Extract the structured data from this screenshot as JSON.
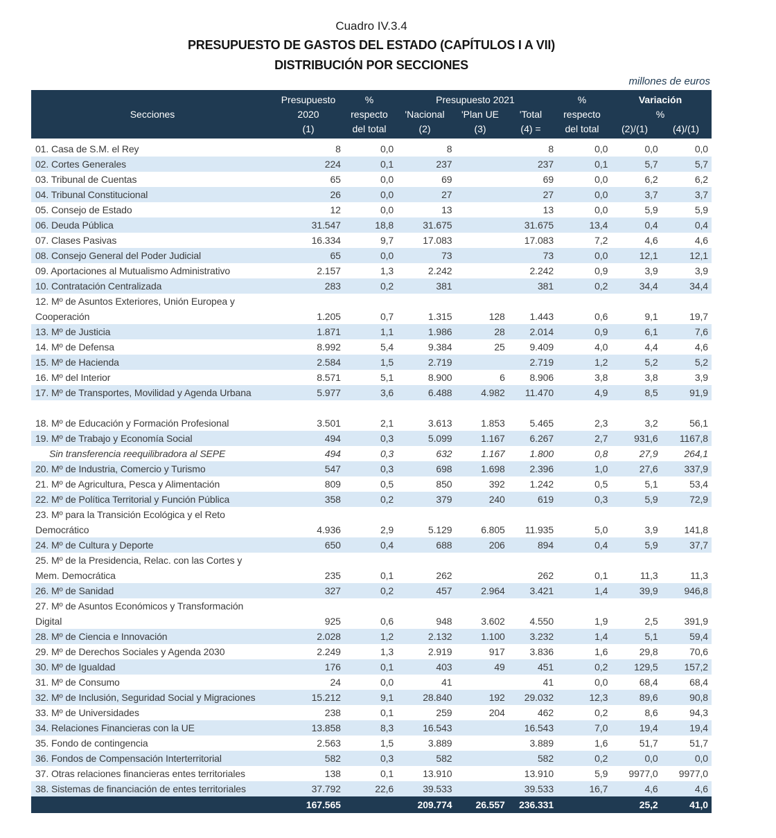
{
  "title": {
    "cuadro": "Cuadro IV.3.4",
    "line1": "PRESUPUESTO DE GASTOS DEL ESTADO (CAPÍTULOS I A VII)",
    "line2": "DISTRIBUCIÓN POR SECCIONES",
    "units": "millones de euros"
  },
  "colors": {
    "header_bg": "#1f3a52",
    "stripe": "#d9e8f5",
    "body_text": "#3b3b3b",
    "header_text": "#ffffff"
  },
  "header": {
    "secciones": "Secciones",
    "p2020": [
      "Presupuesto",
      "2020",
      "(1)"
    ],
    "pct1": [
      "%",
      "respecto",
      "del total"
    ],
    "p2021_group": "Presupuesto 2021",
    "p2021_cols": [
      [
        "'Nacional",
        "(2)"
      ],
      [
        "'Plan UE",
        "(3)"
      ],
      [
        "'Total",
        "(4) ="
      ]
    ],
    "pct2": [
      "%",
      "respecto",
      "del total"
    ],
    "variacion": [
      "Variación",
      "%"
    ],
    "variacion_cols": [
      "(2)/(1)",
      "(4)/(1)"
    ]
  },
  "table": {
    "rows": [
      {
        "label": "01. Casa de S.M. el Rey",
        "values": [
          "8",
          "0,0",
          "8",
          "",
          "8",
          "0,0",
          "0,0",
          "0,0"
        ],
        "variant": "white"
      },
      {
        "label": "02. Cortes Generales",
        "values": [
          "224",
          "0,1",
          "237",
          "",
          "237",
          "0,1",
          "5,7",
          "5,7"
        ],
        "variant": "blue"
      },
      {
        "label": "03. Tribunal de Cuentas",
        "values": [
          "65",
          "0,0",
          "69",
          "",
          "69",
          "0,0",
          "6,2",
          "6,2"
        ],
        "variant": "white"
      },
      {
        "label": "04. Tribunal Constitucional",
        "values": [
          "26",
          "0,0",
          "27",
          "",
          "27",
          "0,0",
          "3,7",
          "3,7"
        ],
        "variant": "blue"
      },
      {
        "label": "05. Consejo de Estado",
        "values": [
          "12",
          "0,0",
          "13",
          "",
          "13",
          "0,0",
          "5,9",
          "5,9"
        ],
        "variant": "white"
      },
      {
        "label": "06. Deuda Pública",
        "values": [
          "31.547",
          "18,8",
          "31.675",
          "",
          "31.675",
          "13,4",
          "0,4",
          "0,4"
        ],
        "variant": "blue"
      },
      {
        "label": "07. Clases Pasivas",
        "values": [
          "16.334",
          "9,7",
          "17.083",
          "",
          "17.083",
          "7,2",
          "4,6",
          "4,6"
        ],
        "variant": "white"
      },
      {
        "label": "08. Consejo General del Poder Judicial",
        "values": [
          "65",
          "0,0",
          "73",
          "",
          "73",
          "0,0",
          "12,1",
          "12,1"
        ],
        "variant": "blue"
      },
      {
        "label": "09. Aportaciones al Mutualismo Administrativo",
        "values": [
          "2.157",
          "1,3",
          "2.242",
          "",
          "2.242",
          "0,9",
          "3,9",
          "3,9"
        ],
        "variant": "white"
      },
      {
        "label": "10. Contratación Centralizada",
        "values": [
          "283",
          "0,2",
          "381",
          "",
          "381",
          "0,2",
          "34,4",
          "34,4"
        ],
        "variant": "blue"
      },
      {
        "label": "12. Mº de Asuntos Exteriores, Unión Europea y",
        "values": [
          "",
          "",
          "",
          "",
          "",
          "",
          "",
          ""
        ],
        "variant": "white"
      },
      {
        "label": "Cooperación",
        "values": [
          "1.205",
          "0,7",
          "1.315",
          "128",
          "1.443",
          "0,6",
          "9,1",
          "19,7"
        ],
        "variant": "white"
      },
      {
        "label": "13. Mº de Justicia",
        "values": [
          "1.871",
          "1,1",
          "1.986",
          "28",
          "2.014",
          "0,9",
          "6,1",
          "7,6"
        ],
        "variant": "blue"
      },
      {
        "label": "14. Mº de Defensa",
        "values": [
          "8.992",
          "5,4",
          "9.384",
          "25",
          "9.409",
          "4,0",
          "4,4",
          "4,6"
        ],
        "variant": "white"
      },
      {
        "label": "15. Mº de Hacienda",
        "values": [
          "2.584",
          "1,5",
          "2.719",
          "",
          "2.719",
          "1,2",
          "5,2",
          "5,2"
        ],
        "variant": "blue"
      },
      {
        "label": "16. Mº del Interior",
        "values": [
          "8.571",
          "5,1",
          "8.900",
          "6",
          "8.906",
          "3,8",
          "3,8",
          "3,9"
        ],
        "variant": "white"
      },
      {
        "label": "17. Mº de Transportes, Movilidad y Agenda Urbana",
        "values": [
          "5.977",
          "3,6",
          "6.488",
          "4.982",
          "11.470",
          "4,9",
          "8,5",
          "91,9"
        ],
        "variant": "blue"
      },
      {
        "label": "",
        "values": [
          "",
          "",
          "",
          "",
          "",
          "",
          "",
          ""
        ],
        "variant": "spacer"
      },
      {
        "label": "18. Mº de Educación y Formación Profesional",
        "values": [
          "3.501",
          "2,1",
          "3.613",
          "1.853",
          "5.465",
          "2,3",
          "3,2",
          "56,1"
        ],
        "variant": "white"
      },
      {
        "label": "19. Mº de Trabajo y Economía Social",
        "values": [
          "494",
          "0,3",
          "5.099",
          "1.167",
          "6.267",
          "2,7",
          "931,6",
          "1167,8"
        ],
        "variant": "blue"
      },
      {
        "label": "Sin transferencia reequilibradora al SEPE",
        "values": [
          "494",
          "0,3",
          "632",
          "1.167",
          "1.800",
          "0,8",
          "27,9",
          "264,1"
        ],
        "variant": "italic"
      },
      {
        "label": "20. Mº de Industria, Comercio y Turismo",
        "values": [
          "547",
          "0,3",
          "698",
          "1.698",
          "2.396",
          "1,0",
          "27,6",
          "337,9"
        ],
        "variant": "blue"
      },
      {
        "label": "21. Mº de Agricultura, Pesca y Alimentación",
        "values": [
          "809",
          "0,5",
          "850",
          "392",
          "1.242",
          "0,5",
          "5,1",
          "53,4"
        ],
        "variant": "white"
      },
      {
        "label": "22. Mº de Política Territorial y Función Pública",
        "values": [
          "358",
          "0,2",
          "379",
          "240",
          "619",
          "0,3",
          "5,9",
          "72,9"
        ],
        "variant": "blue"
      },
      {
        "label": "23. Mº para la Transición Ecológica y el Reto",
        "values": [
          "",
          "",
          "",
          "",
          "",
          "",
          "",
          ""
        ],
        "variant": "white"
      },
      {
        "label": "Democrático",
        "values": [
          "4.936",
          "2,9",
          "5.129",
          "6.805",
          "11.935",
          "5,0",
          "3,9",
          "141,8"
        ],
        "variant": "white"
      },
      {
        "label": "24. Mº de Cultura y Deporte",
        "values": [
          "650",
          "0,4",
          "688",
          "206",
          "894",
          "0,4",
          "5,9",
          "37,7"
        ],
        "variant": "blue"
      },
      {
        "label": "25. Mº de la Presidencia, Relac. con las Cortes y",
        "values": [
          "",
          "",
          "",
          "",
          "",
          "",
          "",
          ""
        ],
        "variant": "white"
      },
      {
        "label": "Mem. Democrática",
        "values": [
          "235",
          "0,1",
          "262",
          "",
          "262",
          "0,1",
          "11,3",
          "11,3"
        ],
        "variant": "white"
      },
      {
        "label": "26. Mº de Sanidad",
        "values": [
          "327",
          "0,2",
          "457",
          "2.964",
          "3.421",
          "1,4",
          "39,9",
          "946,8"
        ],
        "variant": "blue"
      },
      {
        "label": "27. Mº de Asuntos Económicos y Transformación",
        "values": [
          "",
          "",
          "",
          "",
          "",
          "",
          "",
          ""
        ],
        "variant": "white"
      },
      {
        "label": "Digital",
        "values": [
          "925",
          "0,6",
          "948",
          "3.602",
          "4.550",
          "1,9",
          "2,5",
          "391,9"
        ],
        "variant": "white"
      },
      {
        "label": "28. Mº de Ciencia e Innovación",
        "values": [
          "2.028",
          "1,2",
          "2.132",
          "1.100",
          "3.232",
          "1,4",
          "5,1",
          "59,4"
        ],
        "variant": "blue"
      },
      {
        "label": "29. Mº de Derechos Sociales y Agenda 2030",
        "values": [
          "2.249",
          "1,3",
          "2.919",
          "917",
          "3.836",
          "1,6",
          "29,8",
          "70,6"
        ],
        "variant": "white"
      },
      {
        "label": "30. Mº de Igualdad",
        "values": [
          "176",
          "0,1",
          "403",
          "49",
          "451",
          "0,2",
          "129,5",
          "157,2"
        ],
        "variant": "blue"
      },
      {
        "label": "31. Mº de Consumo",
        "values": [
          "24",
          "0,0",
          "41",
          "",
          "41",
          "0,0",
          "68,4",
          "68,4"
        ],
        "variant": "white"
      },
      {
        "label": "32. Mº de Inclusión, Seguridad Social y Migraciones",
        "values": [
          "15.212",
          "9,1",
          "28.840",
          "192",
          "29.032",
          "12,3",
          "89,6",
          "90,8"
        ],
        "variant": "blue"
      },
      {
        "label": "33. Mº de Universidades",
        "values": [
          "238",
          "0,1",
          "259",
          "204",
          "462",
          "0,2",
          "8,6",
          "94,3"
        ],
        "variant": "white"
      },
      {
        "label": "34. Relaciones Financieras con la UE",
        "values": [
          "13.858",
          "8,3",
          "16.543",
          "",
          "16.543",
          "7,0",
          "19,4",
          "19,4"
        ],
        "variant": "blue"
      },
      {
        "label": "35. Fondo de contingencia",
        "values": [
          "2.563",
          "1,5",
          "3.889",
          "",
          "3.889",
          "1,6",
          "51,7",
          "51,7"
        ],
        "variant": "white"
      },
      {
        "label": "36. Fondos de Compensación Interterritorial",
        "values": [
          "582",
          "0,3",
          "582",
          "",
          "582",
          "0,2",
          "0,0",
          "0,0"
        ],
        "variant": "blue"
      },
      {
        "label": "37. Otras relaciones financieras entes territoriales",
        "values": [
          "138",
          "0,1",
          "13.910",
          "",
          "13.910",
          "5,9",
          "9977,0",
          "9977,0"
        ],
        "variant": "white"
      },
      {
        "label": "38. Sistemas de financiación de entes territoriales",
        "values": [
          "37.792",
          "22,6",
          "39.533",
          "",
          "39.533",
          "16,7",
          "4,6",
          "4,6"
        ],
        "variant": "blue"
      }
    ],
    "total_row": {
      "label": "",
      "values": [
        "167.565",
        "",
        "209.774",
        "26.557",
        "236.331",
        "",
        "25,2",
        "41,0"
      ],
      "variant": "total"
    }
  }
}
